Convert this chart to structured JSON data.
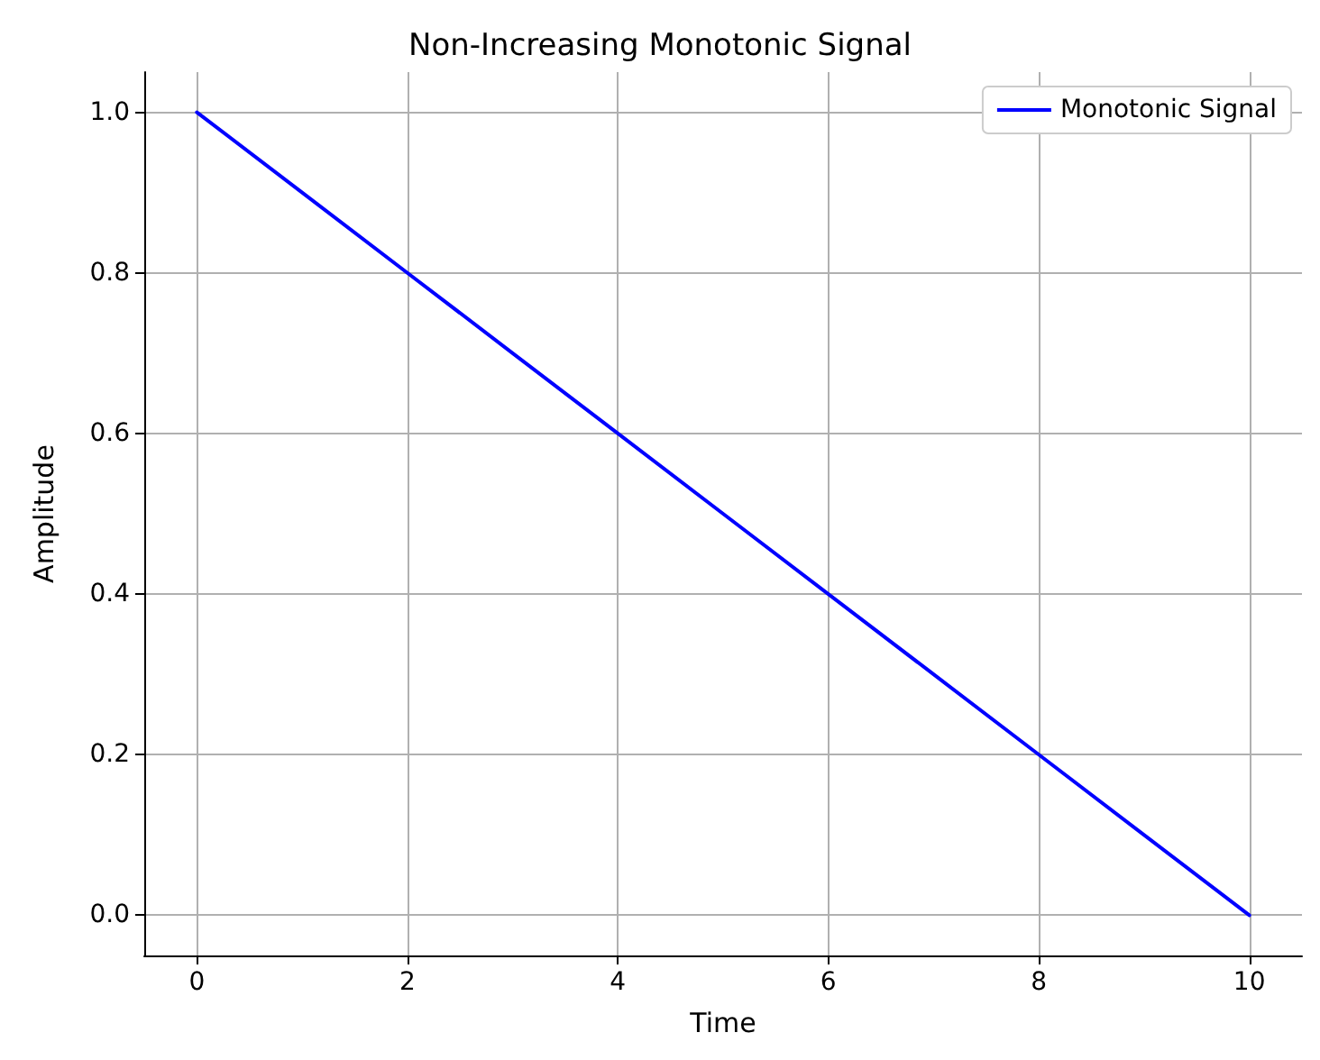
{
  "chart_data": {
    "type": "line",
    "title": "Non-Increasing Monotonic Signal",
    "xlabel": "Time",
    "ylabel": "Amplitude",
    "x": [
      0,
      1,
      2,
      3,
      4,
      5,
      6,
      7,
      8,
      9,
      10
    ],
    "series": [
      {
        "name": "Monotonic Signal",
        "color": "#0000ff",
        "values": [
          1.0,
          0.9,
          0.8,
          0.7,
          0.6,
          0.5,
          0.4,
          0.3,
          0.2,
          0.1,
          0.0
        ]
      }
    ],
    "xlim": [
      -0.5,
      10.5
    ],
    "ylim": [
      -0.05,
      1.05
    ],
    "xticks": [
      0,
      2,
      4,
      6,
      8,
      10
    ],
    "yticks": [
      {
        "value": 0,
        "label": "0.0"
      },
      {
        "value": 0.2,
        "label": "0.2"
      },
      {
        "value": 0.4,
        "label": "0.4"
      },
      {
        "value": 0.6,
        "label": "0.6"
      },
      {
        "value": 0.8,
        "label": "0.8"
      },
      {
        "value": 1,
        "label": "1.0"
      }
    ],
    "grid": true,
    "legend": "top right",
    "marker": "none",
    "line_style": "solid"
  }
}
